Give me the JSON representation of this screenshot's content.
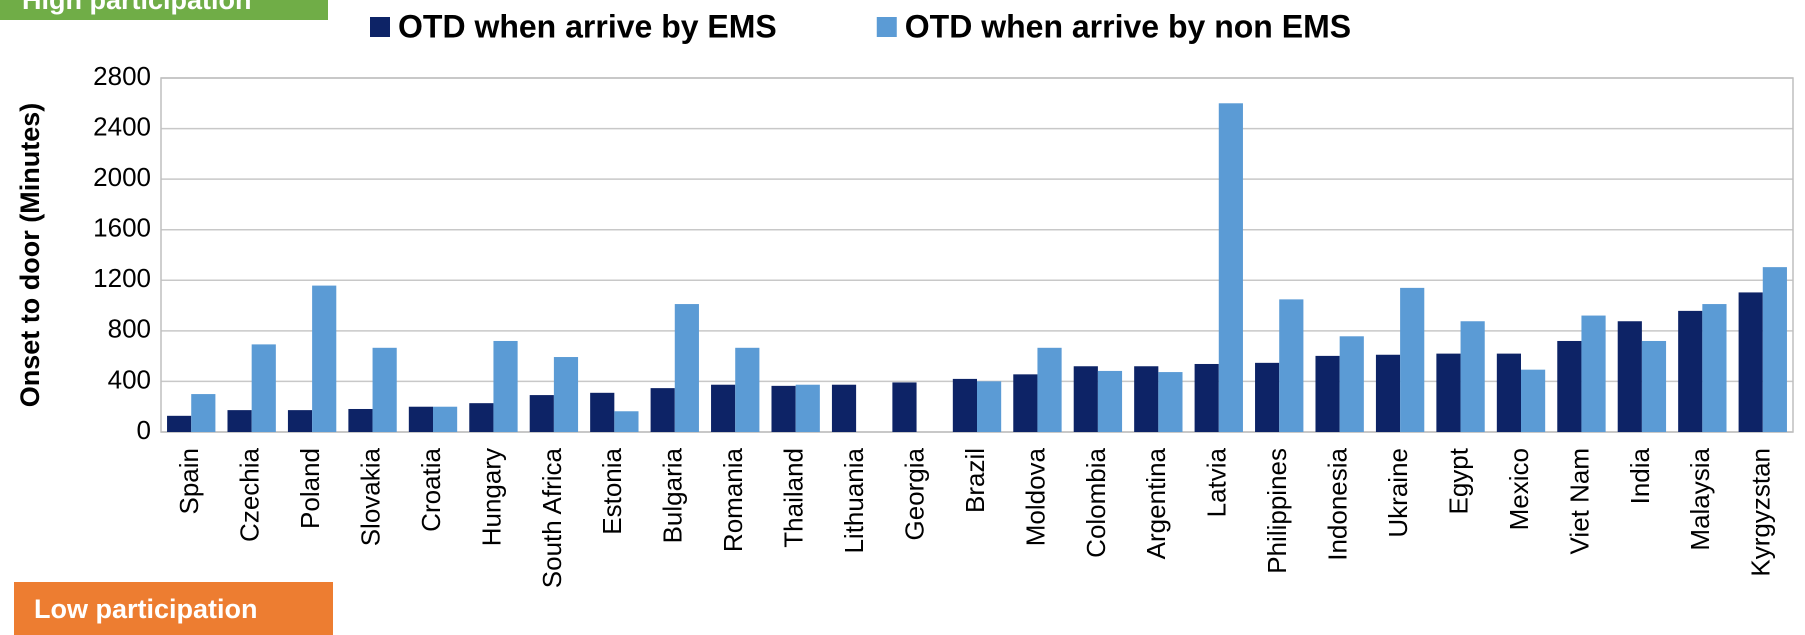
{
  "chart_data": {
    "type": "bar",
    "annotations": [
      "High participation",
      "Low participation"
    ],
    "ylabel": "Onset to door (Minutes)",
    "categories": [
      "Spain",
      "Czechia",
      "Poland",
      "Slovakia",
      "Croatia",
      "Hungary",
      "South Africa",
      "Estonia",
      "Bulgaria",
      "Romania",
      "Thailand",
      "Lithuania",
      "Georgia",
      "Brazil",
      "Moldova",
      "Colombia",
      "Argentina",
      "Latvia",
      "Philippines",
      "Indonesia",
      "Ukraine",
      "Egypt",
      "Mexico",
      "Viet Nam",
      "India",
      "Malaysia",
      "Kyrgyzstan"
    ],
    "series": [
      {
        "name": "OTD when arrive by EMS",
        "color": "#0d2366",
        "values": [
          128,
          173,
          173,
          182,
          200,
          228,
          292,
          310,
          347,
          374,
          365,
          374,
          392,
          420,
          456,
          520,
          520,
          538,
          547,
          602,
          611,
          620,
          620,
          720,
          876,
          958,
          1104
        ]
      },
      {
        "name": "OTD when arrive by non EMS",
        "color": "#5b9bd5",
        "values": [
          300,
          693,
          1158,
          666,
          200,
          720,
          593,
          164,
          1012,
          666,
          374,
          null,
          null,
          401,
          666,
          483,
          474,
          2600,
          1049,
          757,
          1140,
          876,
          493,
          921,
          720,
          1012,
          1304
        ]
      }
    ],
    "ylim": [
      0,
      2800
    ],
    "yticks": [
      0,
      400,
      800,
      1200,
      1600,
      2000,
      2400,
      2800
    ],
    "grid": true
  }
}
